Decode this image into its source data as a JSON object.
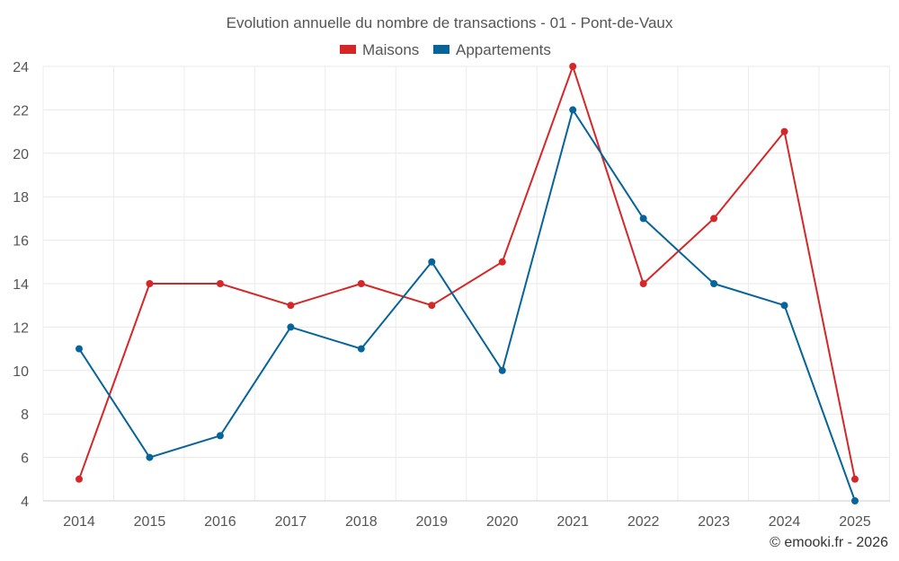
{
  "chart_data": {
    "type": "line",
    "title": "Evolution annuelle du nombre de transactions - 01 - Pont-de-Vaux",
    "categories": [
      "2014",
      "2015",
      "2016",
      "2017",
      "2018",
      "2019",
      "2020",
      "2021",
      "2022",
      "2023",
      "2024",
      "2025"
    ],
    "series": [
      {
        "name": "Maisons",
        "color": "#d62728",
        "values": [
          5,
          14,
          14,
          13,
          14,
          13,
          15,
          24,
          14,
          17,
          21,
          5
        ]
      },
      {
        "name": "Appartements",
        "color": "#06649a",
        "values": [
          11,
          6,
          7,
          12,
          11,
          15,
          10,
          22,
          17,
          14,
          13,
          4
        ]
      }
    ],
    "ylim": [
      4,
      24
    ],
    "yticks": [
      4,
      6,
      8,
      10,
      12,
      14,
      16,
      18,
      20,
      22,
      24
    ],
    "xlabel": "",
    "ylabel": "",
    "grid": true,
    "legend": "top-center"
  },
  "credit": "© emooki.fr - 2026"
}
